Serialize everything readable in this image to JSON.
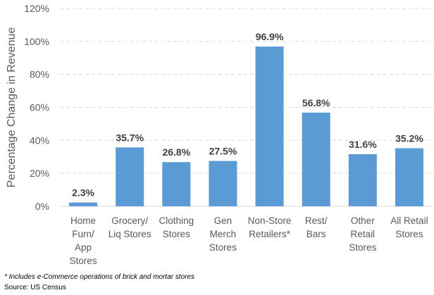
{
  "chart_data": {
    "type": "bar",
    "categories": [
      [
        "Home",
        "Furn/",
        "App",
        "Stores"
      ],
      [
        "Grocery/",
        "Liq Stores"
      ],
      [
        "Clothing",
        "Stores"
      ],
      [
        "Gen",
        "Merch",
        "Stores"
      ],
      [
        "Non-Store",
        "Retailers*"
      ],
      [
        "Rest/",
        "Bars"
      ],
      [
        "Other",
        "Retail",
        "Stores"
      ],
      [
        "All Retail",
        "Stores"
      ]
    ],
    "values": [
      2.3,
      35.7,
      26.8,
      27.5,
      96.9,
      56.8,
      31.6,
      35.2
    ],
    "data_labels": [
      "2.3%",
      "35.7%",
      "26.8%",
      "27.5%",
      "96.9%",
      "56.8%",
      "31.6%",
      "35.2%"
    ],
    "ylabel": "Percentage Change in Revenue",
    "ylim": [
      0,
      120
    ],
    "yticks": [
      0,
      20,
      40,
      60,
      80,
      100,
      120
    ],
    "ytick_labels": [
      "0%",
      "20%",
      "40%",
      "60%",
      "80%",
      "100%",
      "120%"
    ],
    "grid": true,
    "bar_color": "#5b9bd5"
  },
  "footnote": "* Includes e-Commerce operations of brick and mortar stores",
  "source": "Source: US Census"
}
